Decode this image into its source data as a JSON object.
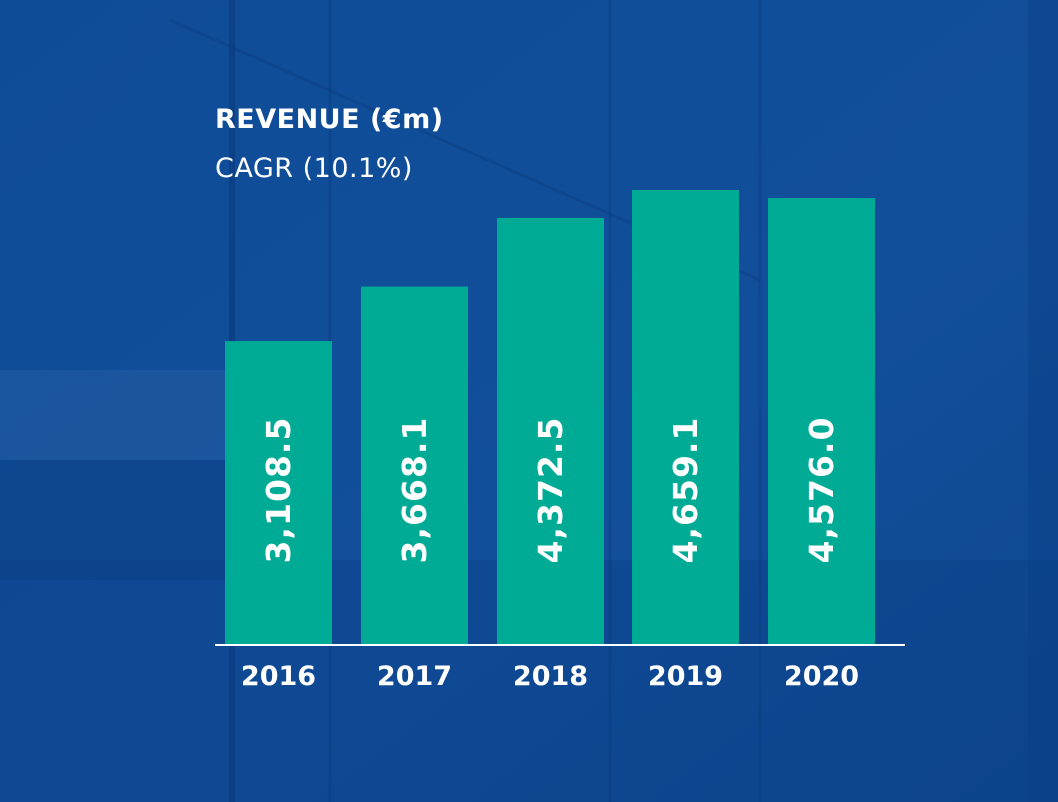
{
  "chart_data": {
    "type": "bar",
    "title": "REVENUE (€m)",
    "subtitle": "CAGR (10.1%)",
    "categories": [
      "2016",
      "2017",
      "2018",
      "2019",
      "2020"
    ],
    "values": [
      3108.5,
      3668.1,
      4372.5,
      4659.1,
      4576.0
    ],
    "value_labels": [
      "3,108.5",
      "3,668.1",
      "4,372.5",
      "4,659.1",
      "4,576.0"
    ],
    "ylim": [
      0,
      4900
    ],
    "grid": false,
    "xlabel": "",
    "ylabel": ""
  },
  "colors": {
    "background": "#114f9b",
    "bar": "#00ab96",
    "text": "#ffffff",
    "axis": "#ffffff"
  }
}
